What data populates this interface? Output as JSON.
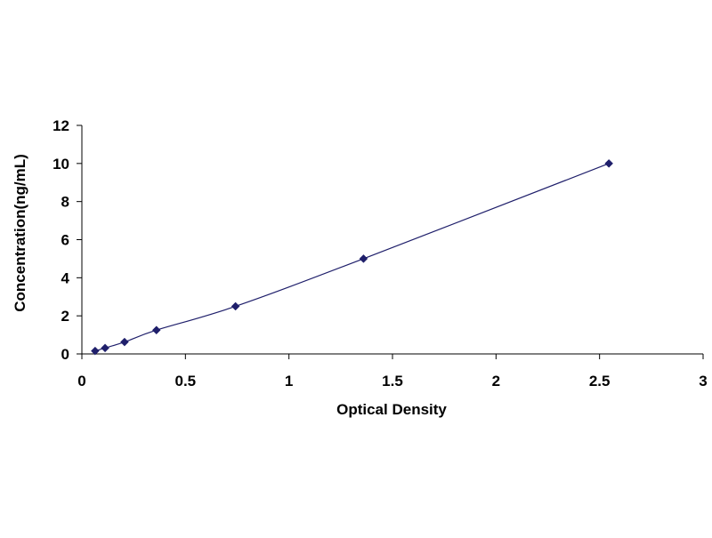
{
  "chart_data": {
    "type": "scatter",
    "xlabel": "Optical Density",
    "ylabel": "Concentration(ng/mL)",
    "xlim": [
      0,
      3
    ],
    "ylim": [
      0,
      12
    ],
    "x_ticks": [
      0,
      0.5,
      1,
      1.5,
      2,
      2.5,
      3
    ],
    "x_tick_labels": [
      "0",
      "0.5",
      "1",
      "1.5",
      "2",
      "2.5",
      "3"
    ],
    "y_ticks": [
      0,
      2,
      4,
      6,
      8,
      10,
      12
    ],
    "y_tick_labels": [
      "0",
      "2",
      "4",
      "6",
      "8",
      "10",
      "12"
    ],
    "grid": false,
    "legend": "none",
    "series": [
      {
        "x": [
          0.064,
          0.112,
          0.206,
          0.36,
          0.742,
          1.36,
          2.545
        ],
        "y": [
          0.156,
          0.312,
          0.625,
          1.25,
          2.5,
          5,
          10
        ],
        "marker": "diamond",
        "color": "#1f1f6b",
        "line": "smooth"
      }
    ]
  }
}
